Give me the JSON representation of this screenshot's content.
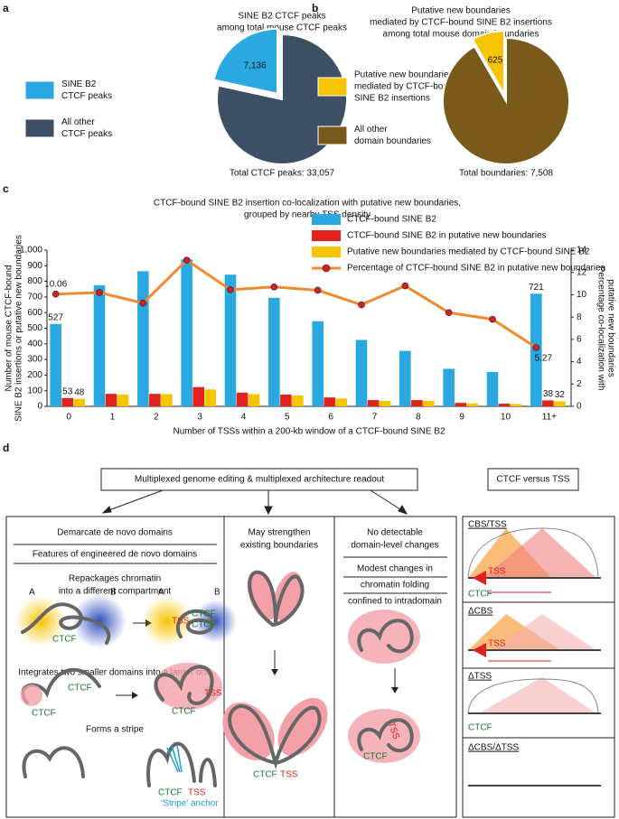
{
  "panel_labels": [
    "a",
    "b",
    "c",
    "d"
  ],
  "chart_data": [
    {
      "type": "pie",
      "title": [
        "SINE B2 CTCF peaks",
        "among total mouse CTCF peaks"
      ],
      "categories": [
        [
          "SINE B2",
          "CTCF peaks"
        ],
        [
          "All other",
          "CTCF peaks"
        ]
      ],
      "values": [
        7136,
        25921
      ],
      "value_labels": [
        "7,136",
        null
      ],
      "colors": [
        "#29a8e2",
        "#3d4f64"
      ],
      "exploded": [
        true,
        false
      ],
      "total_label": "Total CTCF peaks: 33,057"
    },
    {
      "type": "pie",
      "title": [
        "Putative new boundaries",
        "mediated by CTCF-bound SINE B2 insertions",
        "among total mouse domain boundaries"
      ],
      "categories": [
        [
          "Putative new boundaries",
          "mediated by CTCF-bound",
          "SINE B2 insertions"
        ],
        [
          "All other",
          "domain boundaries"
        ]
      ],
      "values": [
        625,
        6883
      ],
      "value_labels": [
        "625",
        null
      ],
      "colors": [
        "#f6c400",
        "#7a5a1a"
      ],
      "exploded": [
        true,
        false
      ],
      "total_label": "Total boundaries: 7,508"
    },
    {
      "type": "bar",
      "title": [
        "CTCF-bound SINE B2 insertion co-localization with putative new boundaries,",
        "grouped by nearby TSS density"
      ],
      "x_label": "Number of TSSs within a 200-kb window of a CTCF-bound SINE B2",
      "y_label": [
        "Number of mouse CTCF-bound",
        "SINE B2 insertions or putative new boundaries"
      ],
      "y2_label": [
        "Percentage co-localization with",
        "putative new boundaries"
      ],
      "categories": [
        "0",
        "1",
        "2",
        "3",
        "4",
        "5",
        "6",
        "7",
        "8",
        "9",
        "10",
        "11+"
      ],
      "ylim": [
        0,
        1000
      ],
      "yticks": [
        0,
        100,
        200,
        300,
        400,
        500,
        600,
        700,
        800,
        900,
        {
          "value": 1000,
          "label": "1,000"
        }
      ],
      "y2lim": [
        0,
        14
      ],
      "y2ticks": [
        0,
        2,
        4,
        6,
        8,
        10,
        12,
        14
      ],
      "series": [
        {
          "name": "CTCF-bound SINE B2",
          "type": "bar",
          "color": "#29a8e2",
          "values": [
            527,
            775,
            865,
            940,
            843,
            695,
            545,
            425,
            355,
            240,
            220,
            721
          ],
          "value_labels": [
            "527",
            null,
            null,
            null,
            null,
            null,
            null,
            null,
            null,
            null,
            null,
            "721"
          ]
        },
        {
          "name": "CTCF-bound SINE B2 in putative new boundaries",
          "type": "bar",
          "color": "#e3211c",
          "values": [
            53,
            80,
            80,
            123,
            88,
            75,
            57,
            40,
            40,
            22,
            17,
            38
          ],
          "value_labels": [
            "53",
            null,
            null,
            null,
            null,
            null,
            null,
            null,
            null,
            null,
            null,
            "38"
          ]
        },
        {
          "name": "Putative new boundaries mediated by CTCF-bound SINE B2",
          "type": "bar",
          "color": "#f6c400",
          "values": [
            48,
            75,
            78,
            108,
            78,
            70,
            50,
            35,
            35,
            18,
            15,
            32
          ],
          "value_labels": [
            "48",
            null,
            null,
            null,
            null,
            null,
            null,
            null,
            null,
            null,
            null,
            "32"
          ]
        },
        {
          "name": "Percentage of CTCF-bound SINE B2 in putative new boundaries",
          "type": "line",
          "axis": "y2",
          "color": "#f08a30",
          "marker_color": "#d0202a",
          "values": [
            10.06,
            10.2,
            9.25,
            13.1,
            10.45,
            10.7,
            10.4,
            9.1,
            10.8,
            8.4,
            7.8,
            5.27
          ],
          "value_labels": [
            "10.06",
            null,
            null,
            null,
            null,
            null,
            null,
            null,
            null,
            null,
            null,
            "5.27"
          ]
        }
      ]
    }
  ],
  "diagram": {
    "header": "Multiplexed genome editing & multiplexed architecture readout",
    "side_header": "CTCF versus TSS",
    "col1": {
      "title": "Demarcate de novo domains",
      "subtitle": "Features of engineered de novo domains",
      "feature1": [
        "Repackages chromatin",
        "into a different compartment"
      ],
      "feature2": "Integrates two smaller domains into a larger one",
      "feature3": "Forms a stripe",
      "labels": [
        "A",
        "B",
        "CTCF",
        "A",
        "B",
        "TSS",
        "CTCF",
        "CTCF",
        "CTCF",
        "CTCF",
        "CTCF",
        "TSS",
        "CTCF",
        "TSS",
        "‘Stripe’ anchor"
      ]
    },
    "col2": {
      "title": [
        "May strengthen",
        "existing boundaries"
      ],
      "labels": [
        "CTCF",
        "TSS"
      ]
    },
    "col3": {
      "title": [
        "No detectable",
        "domain-level changes"
      ],
      "subtitle": [
        "Modest changes in",
        "chromatin folding",
        "confined to intradomain"
      ],
      "labels": [
        "TSS",
        "CTCF"
      ]
    },
    "side": {
      "rows": [
        "CBS/TSS",
        "ΔCBS",
        "ΔTSS",
        "ΔCBS/ΔTSS"
      ],
      "labels": [
        "TSS",
        "CTCF",
        "TSS",
        "CTCF"
      ]
    }
  }
}
